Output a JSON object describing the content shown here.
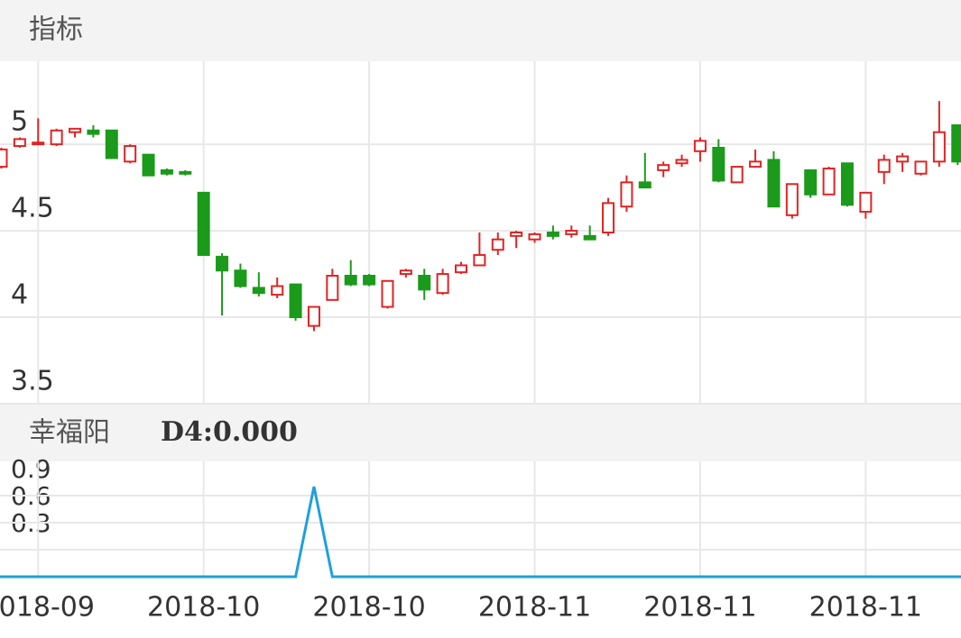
{
  "chart_data": [
    {
      "type": "candlestick",
      "title": "指标",
      "categories": [
        null,
        null,
        "2018-09",
        null,
        null,
        null,
        null,
        null,
        null,
        null,
        null,
        "2018-10",
        null,
        null,
        null,
        null,
        null,
        null,
        null,
        null,
        "2018-10",
        null,
        null,
        null,
        null,
        null,
        null,
        null,
        null,
        "2018-11",
        null,
        null,
        null,
        null,
        null,
        null,
        null,
        null,
        "2018-11",
        null,
        null,
        null,
        null,
        null,
        null,
        null,
        null,
        "2018-11",
        null,
        null,
        null,
        null,
        null
      ],
      "open": [
        4.87,
        4.99,
        5.0,
        5.0,
        5.07,
        5.08,
        5.08,
        4.9,
        4.94,
        4.85,
        4.84,
        4.72,
        4.35,
        4.27,
        4.17,
        4.13,
        4.19,
        3.95,
        4.1,
        4.24,
        4.24,
        4.06,
        4.25,
        4.24,
        4.14,
        4.26,
        4.3,
        4.39,
        4.47,
        4.45,
        4.49,
        4.48,
        4.47,
        4.49,
        4.64,
        4.78,
        4.85,
        4.89,
        4.96,
        4.98,
        4.78,
        4.87,
        4.91,
        4.59,
        4.85,
        4.71,
        4.89,
        4.61,
        4.84,
        4.9,
        4.83,
        4.9,
        5.11
      ],
      "high": [
        4.98,
        5.04,
        5.15,
        5.09,
        5.09,
        5.11,
        5.08,
        5.0,
        4.94,
        4.86,
        4.85,
        4.72,
        4.37,
        4.31,
        4.26,
        4.23,
        4.19,
        4.06,
        4.28,
        4.33,
        4.25,
        4.21,
        4.28,
        4.28,
        4.28,
        4.32,
        4.49,
        4.49,
        4.5,
        4.49,
        4.53,
        4.53,
        4.53,
        4.69,
        4.82,
        4.95,
        4.9,
        4.94,
        5.04,
        5.03,
        4.87,
        4.97,
        4.96,
        4.77,
        4.85,
        4.87,
        4.89,
        4.72,
        4.94,
        4.95,
        4.9,
        5.25,
        5.11
      ],
      "low": [
        4.86,
        4.98,
        5.0,
        4.99,
        5.04,
        5.04,
        4.92,
        4.89,
        4.82,
        4.82,
        4.82,
        4.36,
        4.01,
        4.17,
        4.12,
        4.11,
        3.98,
        3.92,
        4.1,
        4.18,
        4.18,
        4.05,
        4.23,
        4.1,
        4.13,
        4.25,
        4.3,
        4.36,
        4.4,
        4.43,
        4.45,
        4.46,
        4.45,
        4.47,
        4.61,
        4.75,
        4.81,
        4.87,
        4.9,
        4.78,
        4.78,
        4.87,
        4.64,
        4.57,
        4.69,
        4.71,
        4.64,
        4.57,
        4.77,
        4.84,
        4.82,
        4.87,
        4.88
      ],
      "close": [
        4.97,
        5.03,
        5.01,
        5.08,
        5.09,
        5.06,
        4.92,
        4.99,
        4.82,
        4.83,
        4.83,
        4.36,
        4.27,
        4.18,
        4.14,
        4.18,
        4.0,
        4.06,
        4.24,
        4.19,
        4.19,
        4.21,
        4.27,
        4.16,
        4.25,
        4.3,
        4.36,
        4.45,
        4.49,
        4.48,
        4.47,
        4.5,
        4.45,
        4.66,
        4.78,
        4.75,
        4.88,
        4.91,
        5.02,
        4.79,
        4.87,
        4.9,
        4.64,
        4.77,
        4.71,
        4.86,
        4.65,
        4.72,
        4.91,
        4.93,
        4.9,
        5.07,
        4.9
      ],
      "up_color": "#e02424",
      "down_color": "#1b9a1b",
      "ylim": [
        3.5,
        5.48
      ],
      "yticks": [
        3.5,
        4,
        4.5,
        5
      ],
      "grid": true
    },
    {
      "type": "line",
      "title": "幸福阳",
      "series": [
        {
          "name": "D4:0.000",
          "color": "#1ea0db",
          "values": [
            0,
            0,
            0,
            0,
            0,
            0,
            0,
            0,
            0,
            0,
            0,
            0,
            0,
            0,
            0,
            0,
            0,
            1,
            0,
            0,
            0,
            0,
            0,
            0,
            0,
            0,
            0,
            0,
            0,
            0,
            0,
            0,
            0,
            0,
            0,
            0,
            0,
            0,
            0,
            0,
            0,
            0,
            0,
            0,
            0,
            0,
            0,
            0,
            0,
            0,
            0,
            0,
            0
          ]
        }
      ],
      "ylim": [
        0,
        1.28
      ],
      "yticks": [
        0.3,
        0.6,
        0.9
      ],
      "grid": true
    }
  ]
}
